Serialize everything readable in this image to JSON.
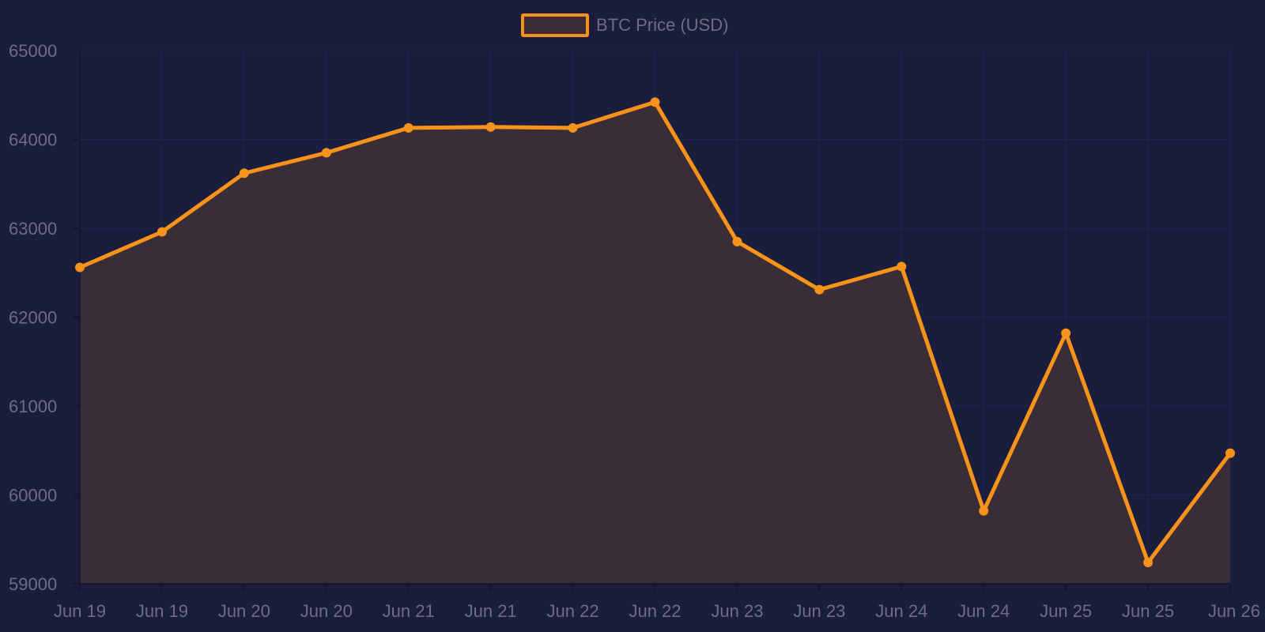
{
  "chart_data": {
    "type": "line",
    "area_fill": true,
    "x": [
      "Jun 19",
      "Jun 19",
      "Jun 20",
      "Jun 20",
      "Jun 21",
      "Jun 21",
      "Jun 22",
      "Jun 22",
      "Jun 23",
      "Jun 23",
      "Jun 24",
      "Jun 24",
      "Jun 25",
      "Jun 25",
      "Jun 26"
    ],
    "series": [
      {
        "name": "BTC Price (USD)",
        "values": [
          62560,
          62960,
          63620,
          63850,
          64130,
          64140,
          64130,
          64420,
          62850,
          62310,
          62570,
          59820,
          61820,
          59240,
          60470
        ]
      }
    ],
    "yticks": [
      59000,
      60000,
      61000,
      62000,
      63000,
      64000,
      65000
    ],
    "ylim": [
      59000,
      65000
    ],
    "grid": true,
    "legend_position": "top-center",
    "colors": {
      "background": "#1a1d3b",
      "line": "#f7931a",
      "area": "#3a2d35",
      "grid": "#22254a",
      "text": "#6c6f80"
    }
  }
}
